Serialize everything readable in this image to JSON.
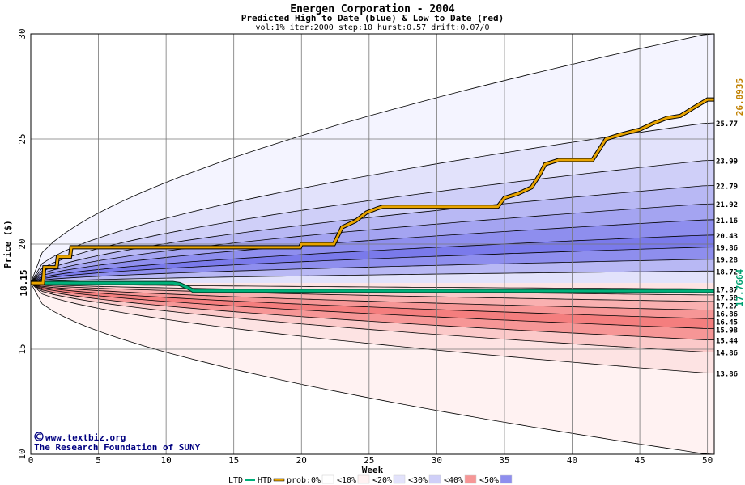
{
  "chart_data": {
    "type": "area",
    "title": "Energen Corporation - 2004",
    "subtitle": "Predicted High to Date (blue) &  Low to Date (red)",
    "params": "vol:1% iter:2000 step:10 hurst:0.57 drift:0.07/0",
    "xlabel": "Week",
    "ylabel": "Price ($)",
    "xlim": [
      0,
      50.5
    ],
    "ylim": [
      10,
      30
    ],
    "x_ticks": [
      0,
      5,
      10,
      15,
      20,
      25,
      30,
      35,
      40,
      45,
      50
    ],
    "y_ticks": [
      10,
      15,
      20,
      25,
      30
    ],
    "grid": true,
    "start_price": "18.15",
    "htd_final": "26.8935",
    "ltd_final": "17.7664",
    "upper_bands": [
      {
        "end": 30.0,
        "color": "#f4f4ff"
      },
      {
        "end": 25.77,
        "color": "#e2e2fb"
      },
      {
        "end": 23.99,
        "color": "#cfcff8"
      },
      {
        "end": 22.79,
        "color": "#b8b8f4"
      },
      {
        "end": 21.92,
        "color": "#a4a4f1"
      },
      {
        "end": 21.16,
        "color": "#8e8eee"
      },
      {
        "end": 20.43,
        "color": "#7a7aeb"
      },
      {
        "end": 19.86,
        "color": "#8e8eee"
      },
      {
        "end": 19.28,
        "color": "#b8b8f4"
      },
      {
        "end": 18.72,
        "color": "#e2e2fb"
      },
      {
        "end": 17.87,
        "color": "#ffffff"
      }
    ],
    "lower_bands": [
      {
        "end": 17.58,
        "color": "#fde3e3"
      },
      {
        "end": 17.27,
        "color": "#fbc9c9"
      },
      {
        "end": 16.86,
        "color": "#f9b0b0"
      },
      {
        "end": 16.45,
        "color": "#f69696"
      },
      {
        "end": 15.98,
        "color": "#f47e7e"
      },
      {
        "end": 15.44,
        "color": "#f69696"
      },
      {
        "end": 14.86,
        "color": "#fbc9c9"
      },
      {
        "end": 13.86,
        "color": "#fde3e3"
      },
      {
        "end": 10.0,
        "color": "#fff2f2"
      }
    ],
    "right_labels": [
      "25.77",
      "23.99",
      "22.79",
      "21.92",
      "21.16",
      "20.43",
      "19.86",
      "19.28",
      "18.72",
      "17.87",
      "17.58",
      "17.27",
      "16.86",
      "16.45",
      "15.98",
      "15.44",
      "14.86",
      "13.86"
    ],
    "htd_series": {
      "name": "HTD",
      "color": "#e8a400",
      "x": [
        0,
        0.9,
        1,
        1.9,
        2,
        2.9,
        3,
        19.9,
        20,
        22.4,
        22.7,
        23,
        24,
        24.8,
        25.6,
        26,
        34.5,
        35,
        36,
        37,
        37.6,
        38,
        39,
        41.5,
        42.5,
        43.5,
        45,
        46,
        47,
        48,
        49,
        50,
        50.5
      ],
      "y": [
        18.15,
        18.15,
        18.9,
        18.9,
        19.4,
        19.4,
        19.85,
        19.85,
        20.0,
        20.0,
        20.4,
        20.8,
        21.1,
        21.5,
        21.7,
        21.78,
        21.78,
        22.2,
        22.4,
        22.7,
        23.3,
        23.8,
        24.0,
        24.0,
        25.0,
        25.2,
        25.45,
        25.75,
        26.0,
        26.1,
        26.5,
        26.88,
        26.88
      ]
    },
    "ltd_series": {
      "name": "LTD",
      "color": "#00b07a",
      "x": [
        0,
        10.5,
        11,
        11.7,
        12,
        50.5
      ],
      "y": [
        18.15,
        18.15,
        18.1,
        17.9,
        17.78,
        17.77
      ]
    },
    "legend": {
      "ltd": "LTD",
      "htd": "HTD",
      "prob": "prob:",
      "items": [
        {
          "label": "0%",
          "color": "#ffffff"
        },
        {
          "label": "<10%",
          "color": "#fff2f2"
        },
        {
          "label": "<20%",
          "color": "#e2e2fb"
        },
        {
          "label": "<30%",
          "color": "#cfcff8"
        },
        {
          "label": "<40%",
          "color": "#f69696"
        },
        {
          "label": "<50%",
          "color": "#8e8eee"
        }
      ]
    },
    "watermark": {
      "line1": "www.textbiz.org",
      "line2": "The Research Foundation of SUNY"
    }
  }
}
